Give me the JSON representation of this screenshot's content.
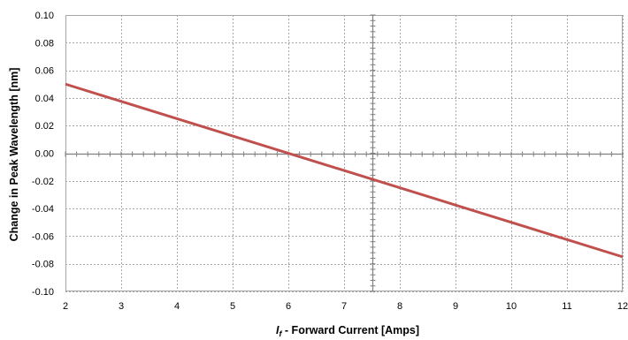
{
  "chart_data": {
    "type": "line",
    "xlabel": {
      "var": "I",
      "sub": "f",
      "rest": " - Forward Current [Amps]"
    },
    "ylabel": "Change in Peak Wavelength [nm]",
    "xlim": [
      2,
      12
    ],
    "ylim": [
      -0.1,
      0.1
    ],
    "x_ticks": [
      2,
      3,
      4,
      5,
      6,
      7,
      8,
      9,
      10,
      11,
      12
    ],
    "y_ticks": [
      "-0.10",
      "-0.08",
      "-0.06",
      "-0.04",
      "-0.02",
      "0.00",
      "0.02",
      "0.04",
      "0.06",
      "0.08",
      "0.10"
    ],
    "y_tick_values": [
      -0.1,
      -0.08,
      -0.06,
      -0.04,
      -0.02,
      0,
      0.02,
      0.04,
      0.06,
      0.08,
      0.1
    ],
    "grid": true,
    "series": [
      {
        "color": "#c0504d",
        "x": [
          2,
          12
        ],
        "y": [
          0.05,
          -0.075
        ]
      }
    ],
    "crosshair": {
      "x": 7.5,
      "y": 0
    }
  }
}
